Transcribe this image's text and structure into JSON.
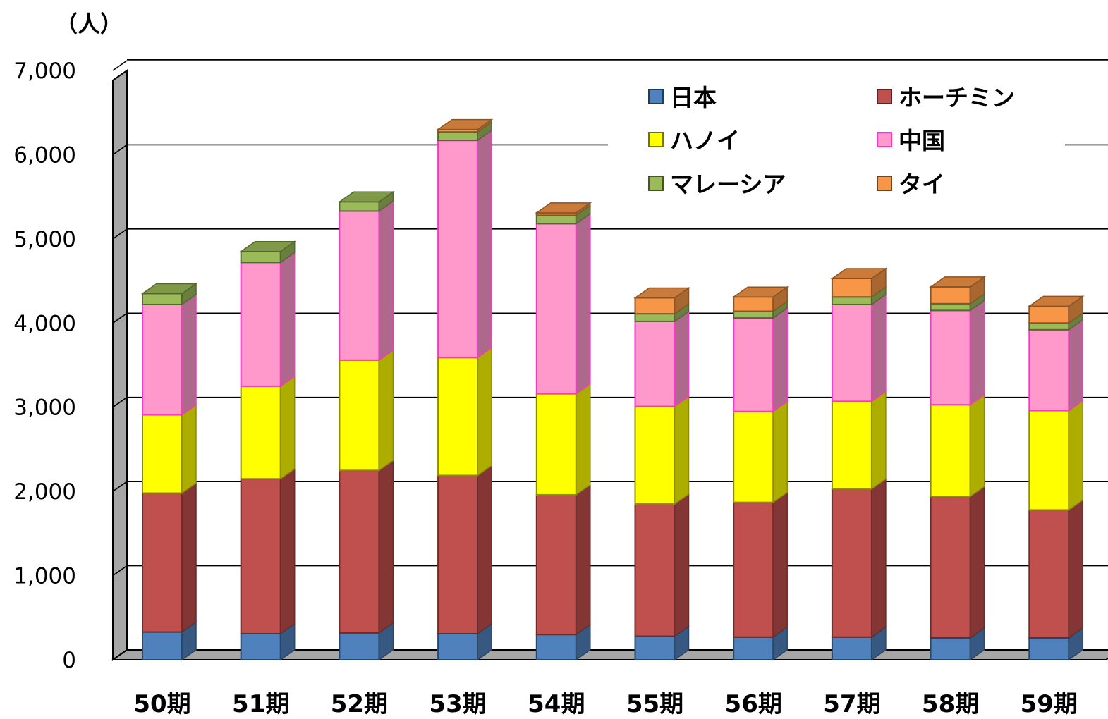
{
  "chart_data": {
    "type": "bar",
    "stacked": true,
    "three_d": true,
    "unit_label": "（人）",
    "categories": [
      "50期",
      "51期",
      "52期",
      "53期",
      "54期",
      "55期",
      "56期",
      "57期",
      "58期",
      "59期"
    ],
    "series": [
      {
        "name": "日本",
        "color": "#4f81bd",
        "values": [
          330,
          310,
          320,
          310,
          300,
          280,
          270,
          270,
          260,
          260
        ]
      },
      {
        "name": "ホーチミン",
        "color": "#c0504d",
        "values": [
          1650,
          1840,
          1930,
          1880,
          1660,
          1570,
          1600,
          1760,
          1680,
          1520
        ]
      },
      {
        "name": "ハノイ",
        "color": "#ffff00",
        "values": [
          930,
          1100,
          1310,
          1400,
          1200,
          1160,
          1080,
          1040,
          1090,
          1180
        ]
      },
      {
        "name": "中国",
        "color": "#ff99cc",
        "values": [
          1310,
          1470,
          1770,
          2580,
          2020,
          1010,
          1110,
          1150,
          1120,
          960
        ]
      },
      {
        "name": "マレーシア",
        "color": "#9bbb59",
        "values": [
          130,
          130,
          110,
          100,
          100,
          90,
          80,
          90,
          80,
          80
        ]
      },
      {
        "name": "タイ",
        "color": "#f79646",
        "values": [
          0,
          0,
          0,
          30,
          30,
          190,
          170,
          220,
          200,
          200
        ]
      }
    ],
    "y_ticks": [
      "0",
      "1,000",
      "2,000",
      "3,000",
      "4,000",
      "5,000",
      "6,000",
      "7,000"
    ],
    "ylim": [
      0,
      7000
    ],
    "grid": true,
    "legend_position": "top-right"
  }
}
